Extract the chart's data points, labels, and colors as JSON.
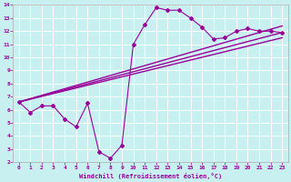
{
  "xlabel": "Windchill (Refroidissement éolien,°C)",
  "bg_color": "#c8f0f0",
  "line_color": "#990099",
  "xlim": [
    -0.5,
    23.5
  ],
  "ylim": [
    2,
    14
  ],
  "xticks": [
    0,
    1,
    2,
    3,
    4,
    5,
    6,
    7,
    8,
    9,
    10,
    11,
    12,
    13,
    14,
    15,
    16,
    17,
    18,
    19,
    20,
    21,
    22,
    23
  ],
  "yticks": [
    2,
    3,
    4,
    5,
    6,
    7,
    8,
    9,
    10,
    11,
    12,
    13,
    14
  ],
  "series1_x": [
    0,
    1,
    2,
    3,
    4,
    5,
    6,
    7,
    8,
    9,
    10,
    11,
    12,
    13,
    14,
    15,
    16,
    17,
    18,
    19,
    20,
    21,
    22,
    23
  ],
  "series1_y": [
    6.6,
    5.8,
    6.3,
    6.3,
    5.3,
    4.7,
    6.5,
    2.8,
    2.3,
    3.3,
    11.0,
    12.5,
    13.8,
    13.6,
    13.6,
    13.0,
    12.3,
    11.4,
    11.5,
    12.0,
    12.2,
    12.0,
    12.0,
    11.9
  ],
  "line1_x": [
    0,
    23
  ],
  "line1_y": [
    6.6,
    11.9
  ],
  "line2_x": [
    0,
    23
  ],
  "line2_y": [
    6.6,
    12.4
  ],
  "line3_x": [
    0,
    23
  ],
  "line3_y": [
    6.6,
    11.5
  ]
}
